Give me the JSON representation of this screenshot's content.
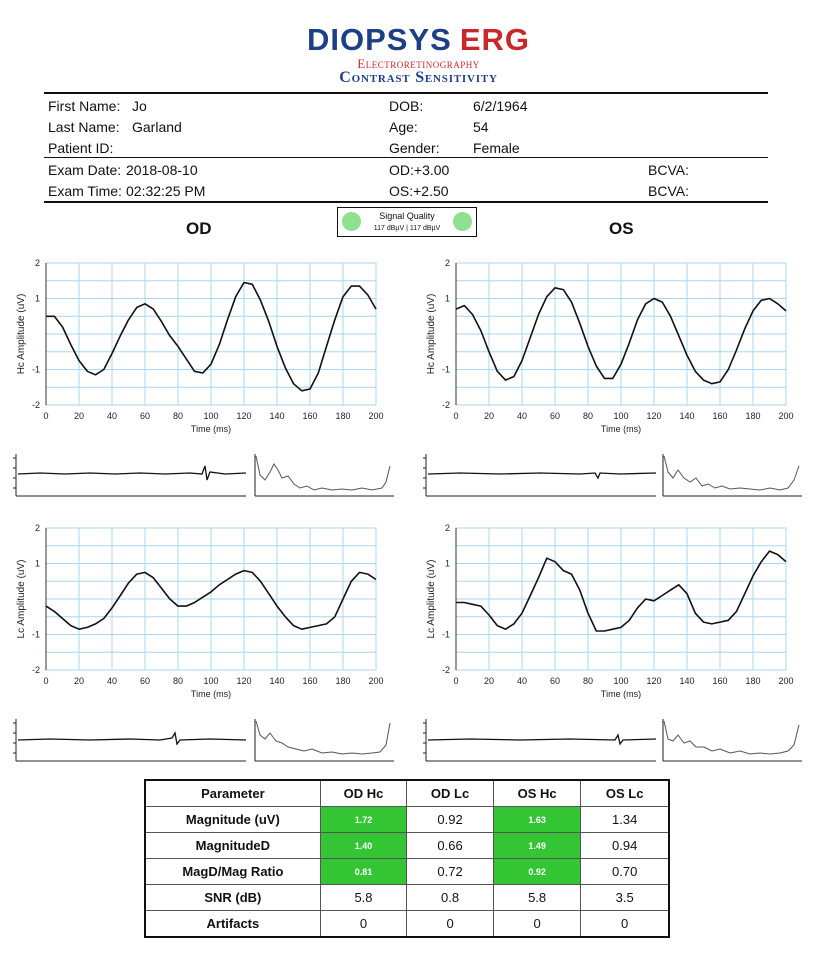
{
  "header": {
    "brand": "DIOPSYS",
    "product": "ERG",
    "subtitle1": "Electroretinography",
    "subtitle2": "Contrast Sensitivity"
  },
  "patient": {
    "first_name_label": "First Name:",
    "first_name": "Jo",
    "last_name_label": "Last Name:",
    "last_name": "Garland",
    "patient_id_label": "Patient ID:",
    "patient_id": "",
    "dob_label": "DOB:",
    "dob": "6/2/1964",
    "age_label": "Age:",
    "age": "54",
    "gender_label": "Gender:",
    "gender": "Female"
  },
  "exam": {
    "date_label": "Exam Date:",
    "date": "2018-08-10",
    "time_label": "Exam Time:",
    "time": "02:32:25 PM",
    "od_label": "OD:",
    "od": "+3.00",
    "os_label": "OS:",
    "os": "+2.50",
    "bcva1_label": "BCVA:",
    "bcva2_label": "BCVA:"
  },
  "signal_quality": {
    "title": "Signal Quality",
    "values": "117 dBµV  |  117 dBµV",
    "color": "#8fe08f"
  },
  "eyes": {
    "od": "OD",
    "os": "OS"
  },
  "chart_data": [
    {
      "type": "line",
      "eye": "OD",
      "ylabel": "Hc Amplitude (uV)",
      "xlabel": "Time (ms)",
      "xlim": [
        0,
        200
      ],
      "ylim": [
        -2,
        2
      ],
      "xticks": [
        "0",
        "20",
        "40",
        "60",
        "80",
        "100",
        "120",
        "140",
        "160",
        "180",
        "200"
      ],
      "yticks": [
        "2",
        "1",
        "-1",
        "-2"
      ],
      "x": [
        0,
        5,
        10,
        15,
        20,
        25,
        30,
        35,
        40,
        45,
        50,
        55,
        60,
        65,
        70,
        75,
        80,
        85,
        90,
        95,
        100,
        105,
        110,
        115,
        120,
        125,
        130,
        135,
        140,
        145,
        150,
        155,
        160,
        165,
        170,
        175,
        180,
        185,
        190,
        195,
        200
      ],
      "y": [
        0.5,
        0.5,
        0.2,
        -0.3,
        -0.75,
        -1.05,
        -1.15,
        -1.0,
        -0.55,
        -0.05,
        0.4,
        0.75,
        0.85,
        0.7,
        0.35,
        -0.05,
        -0.35,
        -0.7,
        -1.05,
        -1.1,
        -0.85,
        -0.3,
        0.4,
        1.05,
        1.45,
        1.4,
        0.95,
        0.35,
        -0.35,
        -0.95,
        -1.4,
        -1.6,
        -1.55,
        -1.1,
        -0.35,
        0.4,
        1.05,
        1.35,
        1.35,
        1.1,
        0.7
      ]
    },
    {
      "type": "line",
      "eye": "OS",
      "ylabel": "Hc Amplitude (uV)",
      "xlabel": "Time (ms)",
      "xlim": [
        0,
        200
      ],
      "ylim": [
        -2,
        2
      ],
      "xticks": [
        "0",
        "20",
        "40",
        "60",
        "80",
        "100",
        "120",
        "140",
        "160",
        "180",
        "200"
      ],
      "yticks": [
        "2",
        "1",
        "-1",
        "-2"
      ],
      "x": [
        0,
        5,
        10,
        15,
        20,
        25,
        30,
        35,
        40,
        45,
        50,
        55,
        60,
        65,
        70,
        75,
        80,
        85,
        90,
        95,
        100,
        105,
        110,
        115,
        120,
        125,
        130,
        135,
        140,
        145,
        150,
        155,
        160,
        165,
        170,
        175,
        180,
        185,
        190,
        195,
        200
      ],
      "y": [
        0.7,
        0.8,
        0.55,
        0.1,
        -0.5,
        -1.05,
        -1.3,
        -1.2,
        -0.75,
        -0.1,
        0.55,
        1.05,
        1.3,
        1.25,
        0.9,
        0.3,
        -0.35,
        -0.9,
        -1.25,
        -1.25,
        -0.85,
        -0.25,
        0.4,
        0.85,
        1.0,
        0.9,
        0.5,
        -0.05,
        -0.6,
        -1.05,
        -1.3,
        -1.4,
        -1.35,
        -1.0,
        -0.45,
        0.15,
        0.65,
        0.95,
        1.0,
        0.85,
        0.65
      ]
    },
    {
      "type": "line",
      "eye": "OD",
      "ylabel": "Lc Amplitude (uV)",
      "xlabel": "Time (ms)",
      "xlim": [
        0,
        200
      ],
      "ylim": [
        -2,
        2
      ],
      "xticks": [
        "0",
        "20",
        "40",
        "60",
        "80",
        "100",
        "120",
        "140",
        "160",
        "180",
        "200"
      ],
      "yticks": [
        "2",
        "1",
        "-1",
        "-2"
      ],
      "x": [
        0,
        5,
        10,
        15,
        20,
        25,
        30,
        35,
        40,
        45,
        50,
        55,
        60,
        65,
        70,
        75,
        80,
        85,
        90,
        95,
        100,
        105,
        110,
        115,
        120,
        125,
        130,
        135,
        140,
        145,
        150,
        155,
        160,
        165,
        170,
        175,
        180,
        185,
        190,
        195,
        200
      ],
      "y": [
        -0.2,
        -0.35,
        -0.55,
        -0.75,
        -0.85,
        -0.8,
        -0.7,
        -0.55,
        -0.25,
        0.1,
        0.45,
        0.7,
        0.75,
        0.6,
        0.3,
        0.0,
        -0.2,
        -0.2,
        -0.1,
        0.05,
        0.2,
        0.4,
        0.55,
        0.7,
        0.8,
        0.75,
        0.5,
        0.15,
        -0.2,
        -0.5,
        -0.75,
        -0.85,
        -0.8,
        -0.75,
        -0.7,
        -0.5,
        0.0,
        0.5,
        0.75,
        0.7,
        0.55
      ]
    },
    {
      "type": "line",
      "eye": "OS",
      "ylabel": "Lc Amplitude (uV)",
      "xlabel": "Time (ms)",
      "xlim": [
        0,
        200
      ],
      "ylim": [
        -2,
        2
      ],
      "xticks": [
        "0",
        "20",
        "40",
        "60",
        "80",
        "100",
        "120",
        "140",
        "160",
        "180",
        "200"
      ],
      "yticks": [
        "2",
        "1",
        "-1",
        "-2"
      ],
      "x": [
        0,
        5,
        10,
        15,
        20,
        25,
        30,
        35,
        40,
        45,
        50,
        55,
        60,
        65,
        70,
        75,
        80,
        85,
        90,
        95,
        100,
        105,
        110,
        115,
        120,
        125,
        130,
        135,
        140,
        145,
        150,
        155,
        160,
        165,
        170,
        175,
        180,
        185,
        190,
        195,
        200
      ],
      "y": [
        -0.1,
        -0.1,
        -0.15,
        -0.2,
        -0.45,
        -0.75,
        -0.85,
        -0.7,
        -0.4,
        0.1,
        0.6,
        1.15,
        1.05,
        0.8,
        0.7,
        0.25,
        -0.4,
        -0.9,
        -0.9,
        -0.85,
        -0.8,
        -0.6,
        -0.25,
        0.0,
        -0.05,
        0.1,
        0.25,
        0.4,
        0.15,
        -0.4,
        -0.65,
        -0.7,
        -0.65,
        -0.6,
        -0.35,
        0.15,
        0.65,
        1.05,
        1.35,
        1.25,
        1.05
      ]
    }
  ],
  "table": {
    "headers": [
      "Parameter",
      "OD Hc",
      "OD Lc",
      "OS Hc",
      "OS Lc"
    ],
    "highlight_color": "#34c534",
    "rows": [
      {
        "label": "Magnitude (uV)",
        "values": [
          "1.72",
          "0.92",
          "1.63",
          "1.34"
        ]
      },
      {
        "label": "MagnitudeD",
        "values": [
          "1.40",
          "0.66",
          "1.49",
          "0.94"
        ]
      },
      {
        "label": "MagD/Mag Ratio",
        "values": [
          "0.81",
          "0.72",
          "0.92",
          "0.70"
        ]
      },
      {
        "label": "SNR (dB)",
        "values": [
          "5.8",
          "0.8",
          "5.8",
          "3.5"
        ]
      },
      {
        "label": "Artifacts",
        "values": [
          "0",
          "0",
          "0",
          "0"
        ]
      }
    ]
  }
}
